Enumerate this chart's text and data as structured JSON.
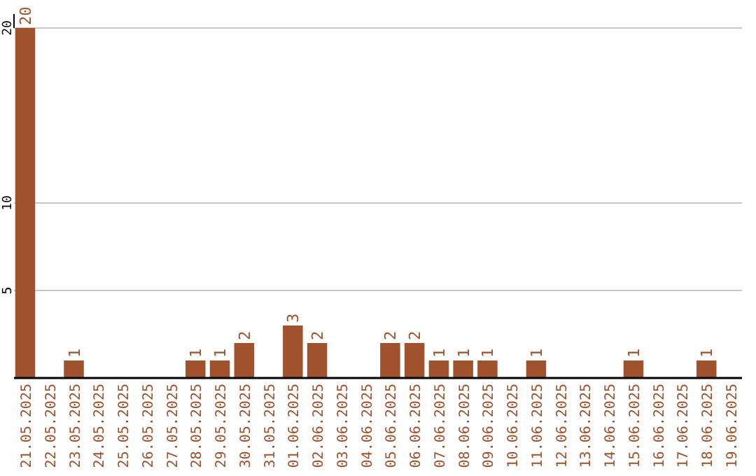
{
  "chart_data": {
    "type": "bar",
    "categories": [
      "21.05.2025",
      "22.05.2025",
      "23.05.2025",
      "24.05.2025",
      "25.05.2025",
      "26.05.2025",
      "27.05.2025",
      "28.05.2025",
      "29.05.2025",
      "30.05.2025",
      "31.05.2025",
      "01.06.2025",
      "02.06.2025",
      "03.06.2025",
      "04.06.2025",
      "05.06.2025",
      "06.06.2025",
      "07.06.2025",
      "08.06.2025",
      "09.06.2025",
      "10.06.2025",
      "11.06.2025",
      "12.06.2025",
      "13.06.2025",
      "14.06.2025",
      "15.06.2025",
      "16.06.2025",
      "17.06.2025",
      "18.06.2025",
      "19.06.2025"
    ],
    "values": [
      20,
      0,
      1,
      0,
      0,
      0,
      0,
      1,
      1,
      2,
      0,
      3,
      2,
      0,
      0,
      2,
      2,
      1,
      1,
      1,
      0,
      1,
      0,
      0,
      0,
      1,
      0,
      0,
      1,
      0
    ],
    "value_labels": [
      "20",
      null,
      "1",
      null,
      null,
      null,
      null,
      "1",
      "1",
      "2",
      null,
      "3",
      "2",
      null,
      null,
      "2",
      "2",
      "1",
      "1",
      "1",
      null,
      "1",
      null,
      null,
      null,
      "1",
      null,
      null,
      "1",
      null
    ],
    "color": "#a0522d",
    "ylim": [
      0,
      20
    ],
    "yticks": [
      5,
      10,
      20
    ],
    "grid": "y"
  }
}
